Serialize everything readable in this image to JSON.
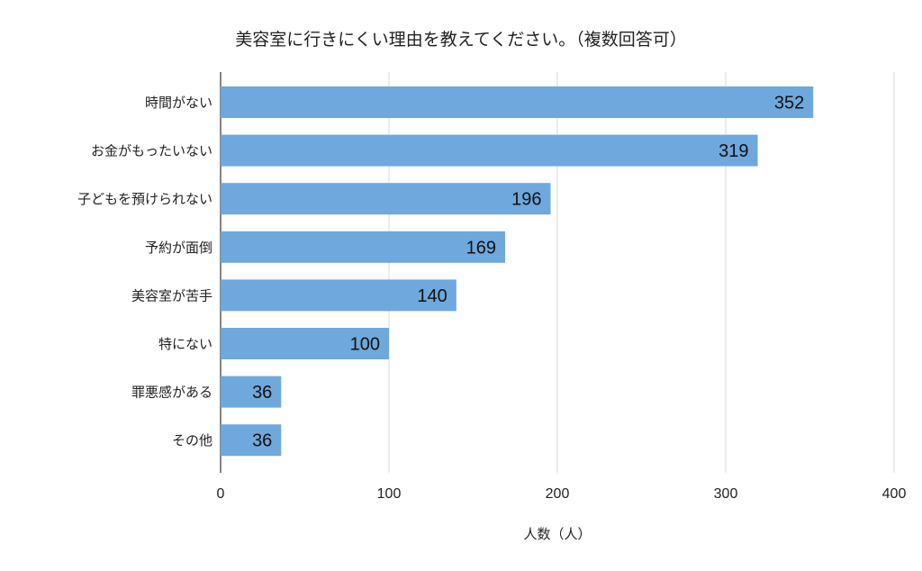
{
  "chart_data": {
    "type": "bar",
    "orientation": "horizontal",
    "title": "美容室に行きにくい理由を教えてください。（複数回答可）",
    "xlabel": "人数（人）",
    "ylabel": "",
    "categories": [
      "時間がない",
      "お金がもったいない",
      "子どもを預けられない",
      "予約が面倒",
      "美容室が苦手",
      "特にない",
      "罪悪感がある",
      "その他"
    ],
    "values": [
      352,
      319,
      196,
      169,
      140,
      100,
      36,
      36
    ],
    "xlim": [
      0,
      400
    ],
    "xticks": [
      0,
      100,
      200,
      300,
      400
    ],
    "grid": "vertical",
    "bar_color": "#6fa8dc",
    "data_labels": "inside-end",
    "legend": "none"
  }
}
